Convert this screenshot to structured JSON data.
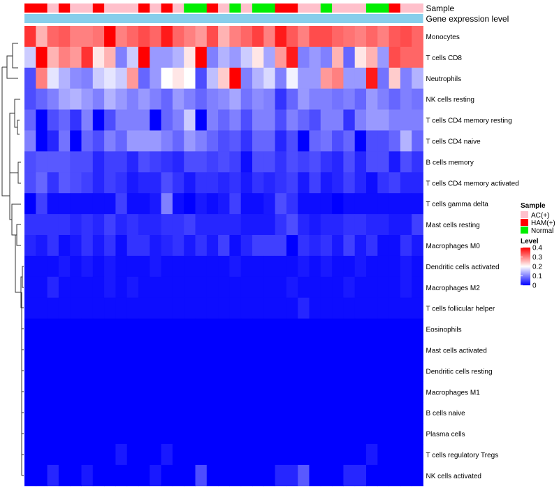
{
  "chart_data": {
    "type": "heatmap",
    "title": "",
    "annotation_rows": [
      {
        "name": "Sample",
        "label": "Sample"
      },
      {
        "name": "gene-expression-level",
        "label": "Gene expression level"
      }
    ],
    "sample_groups": [
      "HAM(+)",
      "HAM(+)",
      "AC(+)",
      "HAM(+)",
      "AC(+)",
      "AC(+)",
      "HAM(+)",
      "AC(+)",
      "AC(+)",
      "AC(+)",
      "HAM(+)",
      "AC(+)",
      "HAM(+)",
      "AC(+)",
      "Normal",
      "Normal",
      "HAM(+)",
      "AC(+)",
      "Normal",
      "AC(+)",
      "Normal",
      "Normal",
      "HAM(+)",
      "HAM(+)",
      "AC(+)",
      "AC(+)",
      "Normal",
      "AC(+)",
      "AC(+)",
      "AC(+)",
      "Normal",
      "Normal",
      "HAM(+)",
      "AC(+)",
      "AC(+)"
    ],
    "rows": [
      "Monocytes",
      "T cells CD8",
      "Neutrophils",
      "NK cells resting",
      "T cells CD4 memory resting",
      "T cells CD4 naive",
      "B cells memory",
      "T cells CD4 memory activated",
      "T cells gamma delta",
      "Mast cells resting",
      "Macrophages M0",
      "Dendritic cells activated",
      "Macrophages M2",
      "T cells follicular helper",
      "Eosinophils",
      "Mast cells activated",
      "Dendritic cells resting",
      "Macrophages M1",
      "B cells naive",
      "Plasma cells",
      "T cells regulatory  Tregs",
      "NK cells activated"
    ],
    "values": [
      [
        0.36,
        0.26,
        0.32,
        0.33,
        0.3,
        0.3,
        0.31,
        0.4,
        0.3,
        0.32,
        0.34,
        0.32,
        0.38,
        0.32,
        0.3,
        0.28,
        0.34,
        0.26,
        0.3,
        0.32,
        0.35,
        0.3,
        0.38,
        0.33,
        0.3,
        0.34,
        0.34,
        0.32,
        0.31,
        0.3,
        0.32,
        0.3,
        0.33,
        0.34,
        0.32
      ],
      [
        0.16,
        0.4,
        0.26,
        0.3,
        0.28,
        0.36,
        0.22,
        0.26,
        0.1,
        0.16,
        0.4,
        0.12,
        0.12,
        0.14,
        0.22,
        0.4,
        0.1,
        0.14,
        0.12,
        0.16,
        0.22,
        0.13,
        0.28,
        0.38,
        0.1,
        0.12,
        0.1,
        0.26,
        0.08,
        0.22,
        0.26,
        0.12,
        0.34,
        0.32,
        0.32
      ],
      [
        0.06,
        0.3,
        0.18,
        0.14,
        0.11,
        0.1,
        0.16,
        0.18,
        0.16,
        0.28,
        0.08,
        0.12,
        0.2,
        0.22,
        0.2,
        0.06,
        0.15,
        0.24,
        0.4,
        0.1,
        0.14,
        0.17,
        0.1,
        0.19,
        0.12,
        0.12,
        0.28,
        0.3,
        0.12,
        0.12,
        0.38,
        0.09,
        0.24,
        0.1,
        0.14
      ],
      [
        0.06,
        0.08,
        0.1,
        0.13,
        0.14,
        0.12,
        0.1,
        0.14,
        0.12,
        0.1,
        0.12,
        0.1,
        0.08,
        0.12,
        0.1,
        0.08,
        0.1,
        0.11,
        0.13,
        0.09,
        0.11,
        0.1,
        0.04,
        0.08,
        0.12,
        0.1,
        0.1,
        0.09,
        0.1,
        0.08,
        0.12,
        0.1,
        0.08,
        0.1,
        0.09
      ],
      [
        0.08,
        0.0,
        0.06,
        0.08,
        0.04,
        0.1,
        0.0,
        0.06,
        0.1,
        0.1,
        0.1,
        0.0,
        0.08,
        0.1,
        0.16,
        0.0,
        0.1,
        0.08,
        0.1,
        0.06,
        0.1,
        0.1,
        0.06,
        0.1,
        0.08,
        0.06,
        0.1,
        0.1,
        0.04,
        0.1,
        0.12,
        0.12,
        0.1,
        0.1,
        0.1
      ],
      [
        0.1,
        0.0,
        0.03,
        0.09,
        0.0,
        0.08,
        0.06,
        0.1,
        0.08,
        0.12,
        0.12,
        0.12,
        0.1,
        0.08,
        0.12,
        0.1,
        0.08,
        0.06,
        0.07,
        0.04,
        0.08,
        0.08,
        0.03,
        0.06,
        0.0,
        0.08,
        0.09,
        0.06,
        0.08,
        0.0,
        0.06,
        0.06,
        0.08,
        0.14,
        0.08
      ],
      [
        0.06,
        0.07,
        0.07,
        0.07,
        0.06,
        0.06,
        0.03,
        0.05,
        0.05,
        0.03,
        0.06,
        0.05,
        0.04,
        0.03,
        0.06,
        0.06,
        0.05,
        0.06,
        0.05,
        0.01,
        0.06,
        0.06,
        0.04,
        0.06,
        0.05,
        0.06,
        0.04,
        0.03,
        0.06,
        0.03,
        0.06,
        0.06,
        0.02,
        0.06,
        0.04
      ],
      [
        0.06,
        0.08,
        0.04,
        0.07,
        0.06,
        0.05,
        0.03,
        0.05,
        0.04,
        0.02,
        0.03,
        0.03,
        0.06,
        0.04,
        0.02,
        0.04,
        0.04,
        0.03,
        0.04,
        0.02,
        0.04,
        0.03,
        0.04,
        0.05,
        0.02,
        0.05,
        0.02,
        0.03,
        0.05,
        0.03,
        0.01,
        0.04,
        0.05,
        0.03,
        0.03
      ],
      [
        0.0,
        0.05,
        0.01,
        0.01,
        0.01,
        0.01,
        0.01,
        0.01,
        0.05,
        0.01,
        0.01,
        0.02,
        0.1,
        0.01,
        0.0,
        0.02,
        0.01,
        0.02,
        0.05,
        0.01,
        0.01,
        0.02,
        0.06,
        0.04,
        0.01,
        0.01,
        0.01,
        0.0,
        0.01,
        0.01,
        0.01,
        0.01,
        0.01,
        0.01,
        0.01
      ],
      [
        0.04,
        0.04,
        0.04,
        0.04,
        0.03,
        0.04,
        0.03,
        0.05,
        0.03,
        0.04,
        0.03,
        0.03,
        0.04,
        0.04,
        0.05,
        0.03,
        0.03,
        0.03,
        0.03,
        0.02,
        0.02,
        0.02,
        0.04,
        0.06,
        0.03,
        0.02,
        0.03,
        0.03,
        0.04,
        0.04,
        0.03,
        0.03,
        0.02,
        0.02,
        0.05
      ],
      [
        0.03,
        0.02,
        0.04,
        0.01,
        0.02,
        0.04,
        0.02,
        0.04,
        0.01,
        0.04,
        0.04,
        0.02,
        0.03,
        0.04,
        0.02,
        0.04,
        0.02,
        0.05,
        0.01,
        0.03,
        0.05,
        0.05,
        0.05,
        0.0,
        0.04,
        0.03,
        0.04,
        0.02,
        0.05,
        0.02,
        0.04,
        0.01,
        0.01,
        0.04,
        0.02
      ],
      [
        0.01,
        0.01,
        0.01,
        0.02,
        0.01,
        0.02,
        0.01,
        0.02,
        0.01,
        0.01,
        0.01,
        0.02,
        0.01,
        0.01,
        0.01,
        0.01,
        0.01,
        0.01,
        0.02,
        0.01,
        0.01,
        0.01,
        0.01,
        0.01,
        0.02,
        0.01,
        0.02,
        0.01,
        0.01,
        0.02,
        0.01,
        0.01,
        0.01,
        0.02,
        0.01
      ],
      [
        0.01,
        0.01,
        0.03,
        0.01,
        0.01,
        0.01,
        0.01,
        0.02,
        0.01,
        0.02,
        0.01,
        0.01,
        0.01,
        0.01,
        0.01,
        0.01,
        0.01,
        0.01,
        0.01,
        0.01,
        0.01,
        0.01,
        0.01,
        0.02,
        0.01,
        0.01,
        0.01,
        0.01,
        0.02,
        0.01,
        0.01,
        0.01,
        0.01,
        0.02,
        0.01
      ],
      [
        0.01,
        0.01,
        0.01,
        0.01,
        0.01,
        0.01,
        0.01,
        0.01,
        0.01,
        0.01,
        0.01,
        0.01,
        0.01,
        0.01,
        0.01,
        0.01,
        0.01,
        0.01,
        0.01,
        0.01,
        0.01,
        0.01,
        0.01,
        0.01,
        0.03,
        0.01,
        0.01,
        0.01,
        0.01,
        0.01,
        0.01,
        0.01,
        0.01,
        0.01,
        0.01
      ],
      [
        0.0,
        0.0,
        0.0,
        0.0,
        0.0,
        0.0,
        0.0,
        0.0,
        0.0,
        0.0,
        0.0,
        0.0,
        0.0,
        0.0,
        0.0,
        0.0,
        0.0,
        0.0,
        0.0,
        0.0,
        0.0,
        0.0,
        0.0,
        0.0,
        0.0,
        0.0,
        0.0,
        0.0,
        0.0,
        0.0,
        0.0,
        0.0,
        0.0,
        0.0,
        0.0
      ],
      [
        0.0,
        0.0,
        0.0,
        0.0,
        0.0,
        0.0,
        0.0,
        0.0,
        0.0,
        0.0,
        0.0,
        0.0,
        0.0,
        0.0,
        0.0,
        0.0,
        0.0,
        0.0,
        0.0,
        0.0,
        0.0,
        0.0,
        0.0,
        0.0,
        0.0,
        0.0,
        0.0,
        0.0,
        0.0,
        0.0,
        0.0,
        0.0,
        0.0,
        0.0,
        0.0
      ],
      [
        0.0,
        0.0,
        0.0,
        0.0,
        0.0,
        0.0,
        0.0,
        0.0,
        0.0,
        0.0,
        0.0,
        0.0,
        0.0,
        0.0,
        0.0,
        0.0,
        0.0,
        0.0,
        0.0,
        0.0,
        0.0,
        0.0,
        0.0,
        0.0,
        0.0,
        0.0,
        0.0,
        0.0,
        0.0,
        0.0,
        0.0,
        0.0,
        0.0,
        0.0,
        0.0
      ],
      [
        0.0,
        0.0,
        0.0,
        0.0,
        0.0,
        0.0,
        0.0,
        0.0,
        0.0,
        0.0,
        0.0,
        0.0,
        0.0,
        0.0,
        0.0,
        0.0,
        0.0,
        0.0,
        0.0,
        0.0,
        0.0,
        0.0,
        0.0,
        0.0,
        0.0,
        0.0,
        0.0,
        0.0,
        0.0,
        0.0,
        0.0,
        0.0,
        0.0,
        0.0,
        0.0
      ],
      [
        0.0,
        0.0,
        0.0,
        0.0,
        0.0,
        0.0,
        0.0,
        0.0,
        0.0,
        0.0,
        0.0,
        0.0,
        0.0,
        0.0,
        0.0,
        0.0,
        0.0,
        0.0,
        0.0,
        0.0,
        0.0,
        0.0,
        0.0,
        0.0,
        0.0,
        0.0,
        0.0,
        0.0,
        0.0,
        0.0,
        0.0,
        0.0,
        0.0,
        0.0,
        0.0
      ],
      [
        0.0,
        0.0,
        0.0,
        0.0,
        0.0,
        0.0,
        0.0,
        0.0,
        0.0,
        0.0,
        0.0,
        0.0,
        0.0,
        0.0,
        0.0,
        0.0,
        0.0,
        0.0,
        0.0,
        0.0,
        0.0,
        0.0,
        0.0,
        0.0,
        0.0,
        0.0,
        0.0,
        0.0,
        0.0,
        0.0,
        0.0,
        0.0,
        0.0,
        0.0,
        0.0
      ],
      [
        0.0,
        0.0,
        0.0,
        0.0,
        0.0,
        0.0,
        0.0,
        0.0,
        0.02,
        0.0,
        0.0,
        0.0,
        0.02,
        0.0,
        0.0,
        0.0,
        0.0,
        0.0,
        0.0,
        0.0,
        0.0,
        0.0,
        0.0,
        0.0,
        0.0,
        0.0,
        0.0,
        0.0,
        0.0,
        0.0,
        0.02,
        0.0,
        0.0,
        0.0,
        0.0
      ],
      [
        0.0,
        0.0,
        0.03,
        0.0,
        0.0,
        0.02,
        0.0,
        0.0,
        0.0,
        0.0,
        0.0,
        0.02,
        0.0,
        0.0,
        0.0,
        0.06,
        0.0,
        0.0,
        0.0,
        0.0,
        0.0,
        0.0,
        0.03,
        0.03,
        0.07,
        0.0,
        0.0,
        0.0,
        0.03,
        0.03,
        0.0,
        0.0,
        0.0,
        0.0,
        0.0
      ]
    ],
    "color_scale": {
      "low": "#0000ff",
      "mid": "#ffffff",
      "high": "#ff0000",
      "min": 0,
      "mid_value": 0.2,
      "max": 0.4
    },
    "legends": {
      "sample": {
        "title": "Sample",
        "items": [
          {
            "label": "AC(+)",
            "color": "#ffc0cb"
          },
          {
            "label": "HAM(+)",
            "color": "#ff0000"
          },
          {
            "label": "Normal",
            "color": "#00ee00"
          }
        ]
      },
      "level": {
        "title": "Level",
        "ticks": [
          "0.4",
          "0.3",
          "0.2",
          "0.1",
          "0"
        ],
        "tick_values": [
          0.4,
          0.3,
          0.2,
          0.1,
          0
        ]
      }
    },
    "gene_expression_color": "#87ceeb"
  }
}
